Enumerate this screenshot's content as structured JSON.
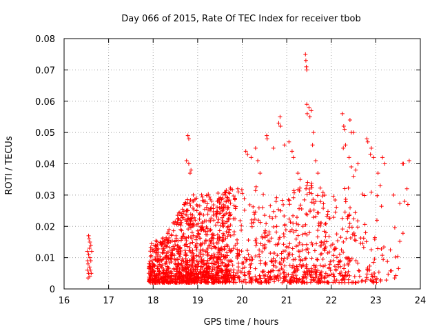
{
  "chart_data": {
    "type": "scatter",
    "title": "Day 066 of 2015, Rate Of TEC Index for receiver tbob",
    "xlabel": "GPS time / hours",
    "ylabel": "ROTI / TECUs",
    "xlim": [
      16,
      24
    ],
    "ylim": [
      0,
      0.08
    ],
    "grid": true,
    "marker": "+",
    "color": "#ff0000",
    "xticks": [
      "16",
      "17",
      "18",
      "19",
      "20",
      "21",
      "22",
      "23",
      "24"
    ],
    "yticks": [
      "0",
      "0.01",
      "0.02",
      "0.03",
      "0.04",
      "0.05",
      "0.06",
      "0.07",
      "0.08"
    ],
    "series": [
      {
        "name": "ROTI",
        "points": [
          [
            16.55,
            0.017
          ],
          [
            16.56,
            0.016
          ],
          [
            16.58,
            0.015
          ],
          [
            16.6,
            0.014
          ],
          [
            16.57,
            0.013
          ],
          [
            16.52,
            0.012
          ],
          [
            16.62,
            0.012
          ],
          [
            16.55,
            0.011
          ],
          [
            16.58,
            0.01
          ],
          [
            16.53,
            0.009
          ],
          [
            16.6,
            0.009
          ],
          [
            16.54,
            0.008
          ],
          [
            16.57,
            0.007
          ],
          [
            16.52,
            0.006
          ],
          [
            16.59,
            0.006
          ],
          [
            16.55,
            0.005
          ],
          [
            16.58,
            0.004
          ],
          [
            16.54,
            0.0035
          ],
          [
            16.61,
            0.005
          ],
          [
            18.78,
            0.049
          ],
          [
            18.8,
            0.048
          ],
          [
            18.75,
            0.041
          ],
          [
            18.8,
            0.04
          ],
          [
            18.85,
            0.038
          ],
          [
            18.83,
            0.037
          ],
          [
            19.9,
            0.032
          ],
          [
            20.08,
            0.044
          ],
          [
            20.12,
            0.043
          ],
          [
            20.2,
            0.042
          ],
          [
            20.3,
            0.045
          ],
          [
            20.35,
            0.041
          ],
          [
            20.4,
            0.037
          ],
          [
            20.55,
            0.049
          ],
          [
            20.56,
            0.048
          ],
          [
            20.7,
            0.045
          ],
          [
            20.82,
            0.053
          ],
          [
            20.85,
            0.055
          ],
          [
            20.86,
            0.052
          ],
          [
            20.95,
            0.046
          ],
          [
            21.05,
            0.047
          ],
          [
            21.12,
            0.044
          ],
          [
            21.15,
            0.042
          ],
          [
            21.25,
            0.037
          ],
          [
            21.3,
            0.035
          ],
          [
            21.42,
            0.075
          ],
          [
            21.43,
            0.073
          ],
          [
            21.44,
            0.071
          ],
          [
            21.45,
            0.07
          ],
          [
            21.45,
            0.059
          ],
          [
            21.5,
            0.058
          ],
          [
            21.46,
            0.056
          ],
          [
            21.55,
            0.057
          ],
          [
            21.52,
            0.055
          ],
          [
            21.6,
            0.05
          ],
          [
            21.58,
            0.046
          ],
          [
            21.65,
            0.041
          ],
          [
            21.55,
            0.033
          ],
          [
            21.7,
            0.037
          ],
          [
            22.25,
            0.056
          ],
          [
            22.28,
            0.052
          ],
          [
            22.3,
            0.051
          ],
          [
            22.42,
            0.054
          ],
          [
            22.45,
            0.05
          ],
          [
            22.5,
            0.05
          ],
          [
            22.27,
            0.045
          ],
          [
            22.32,
            0.046
          ],
          [
            22.4,
            0.042
          ],
          [
            22.45,
            0.039
          ],
          [
            22.55,
            0.038
          ],
          [
            22.5,
            0.036
          ],
          [
            22.6,
            0.04
          ],
          [
            22.8,
            0.048
          ],
          [
            22.82,
            0.047
          ],
          [
            22.9,
            0.045
          ],
          [
            22.88,
            0.043
          ],
          [
            22.95,
            0.042
          ],
          [
            23.05,
            0.037
          ],
          [
            23.1,
            0.033
          ],
          [
            23.15,
            0.042
          ],
          [
            23.2,
            0.04
          ],
          [
            23.4,
            0.03
          ],
          [
            23.6,
            0.04
          ],
          [
            23.62,
            0.04
          ],
          [
            23.7,
            0.032
          ],
          [
            23.75,
            0.041
          ],
          [
            23.65,
            0.028
          ],
          [
            23.72,
            0.027
          ]
        ]
      }
    ]
  }
}
